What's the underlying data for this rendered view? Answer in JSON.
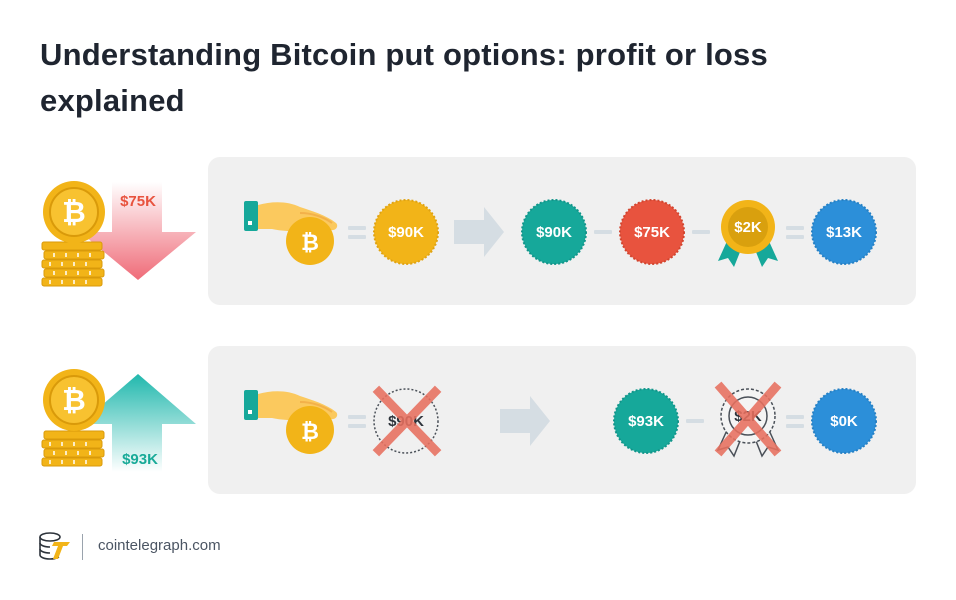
{
  "title": "Understanding Bitcoin put options: profit or loss explained",
  "row1": {
    "price_label": "$75K",
    "arrow_direction": "down",
    "strike_coin": "$90K",
    "sell_coin": "$90K",
    "market_coin": "$75K",
    "premium_badge": "$2K",
    "result_coin": "$13K"
  },
  "row2": {
    "price_label": "$93K",
    "arrow_direction": "up",
    "strike_coin": "$90K",
    "sell_coin": "$93K",
    "premium_badge": "$2K",
    "result_coin": "$0K"
  },
  "footer": {
    "brand": "cointelegraph.com",
    "logo_icon": "cointelegraph-logo-icon"
  },
  "colors": {
    "title": "#1f2530",
    "panel_bg": "#f0f0f0",
    "gold": "#f2b418",
    "teal": "#16a89a",
    "red": "#e8533e",
    "blue": "#2c8fd9",
    "cross": "#e8705f",
    "arrow_gray": "#d5dde3",
    "label_red": "#e8533e",
    "label_teal": "#18aa98"
  }
}
